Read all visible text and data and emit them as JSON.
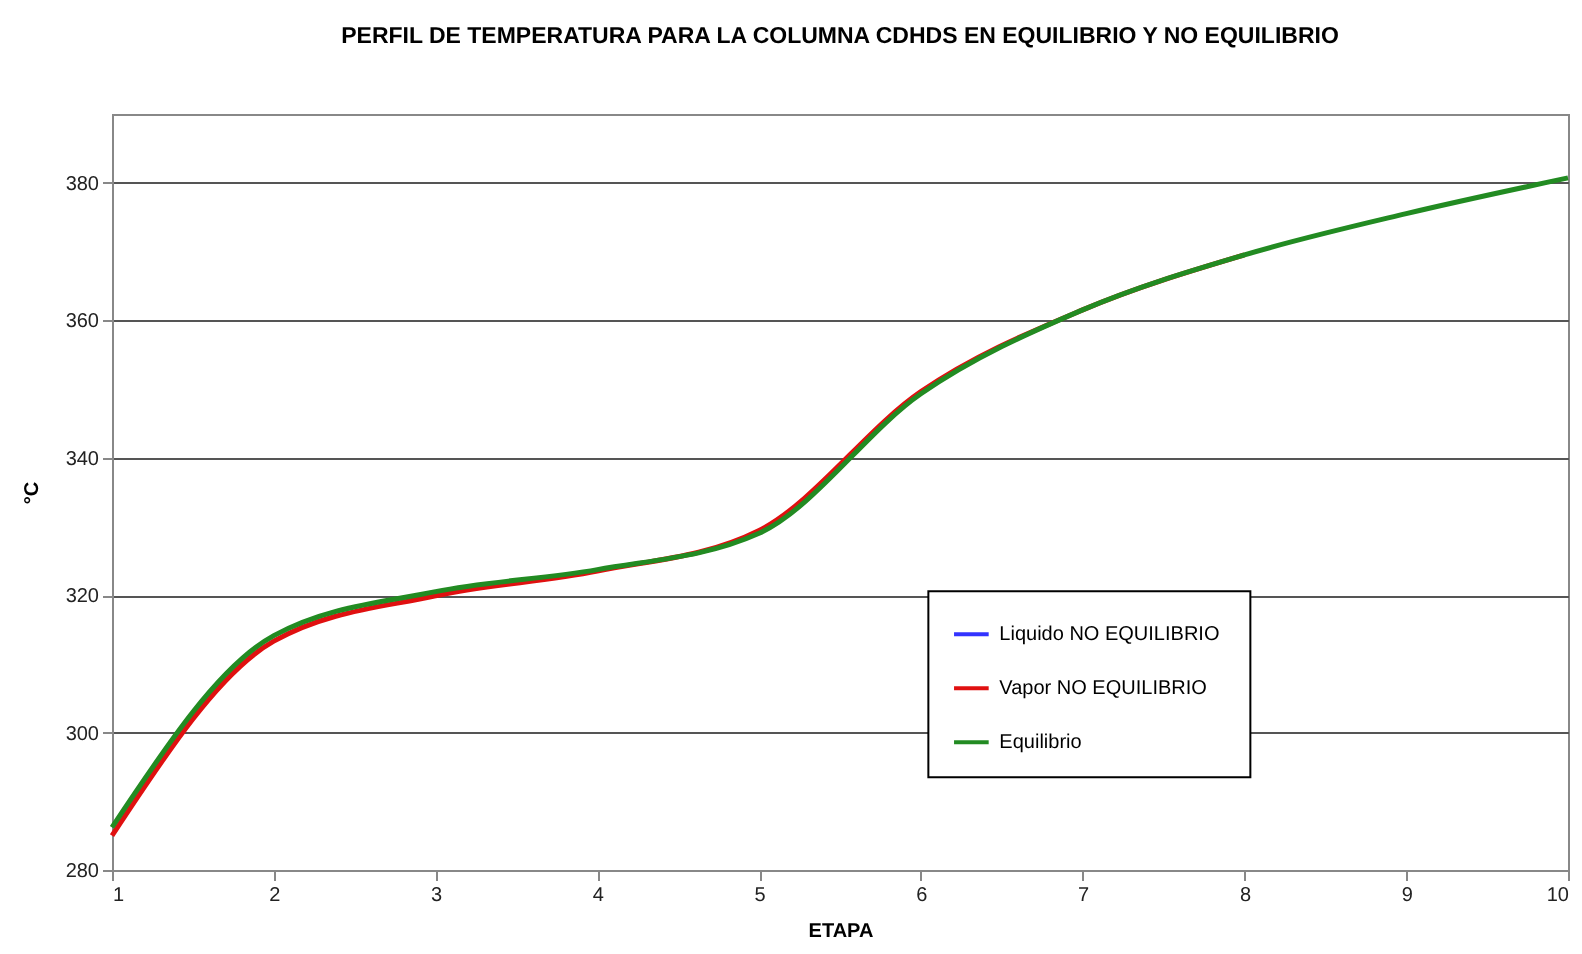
{
  "chart_data": {
    "type": "line",
    "title": "PERFIL DE TEMPERATURA PARA LA COLUMNA CDHDS EN EQUILIBRIO Y NO EQUILIBRIO",
    "xlabel": "ETAPA",
    "ylabel": "°C",
    "x": [
      1,
      2,
      3,
      4,
      5,
      6,
      7,
      8,
      9,
      10
    ],
    "series": [
      {
        "name": "Liquido  NO EQUILIBRIO",
        "color": "#3333ff",
        "values": [
          null,
          null,
          null,
          null,
          null,
          null,
          null,
          null,
          null,
          null
        ]
      },
      {
        "name": "Vapor NO EQUILIBRIO",
        "color": "#e01010",
        "values": [
          285,
          313.3,
          319.9,
          323.5,
          329.4,
          349.6,
          361.5,
          369.5,
          null,
          null
        ]
      },
      {
        "name": "Equilibrio",
        "color": "#228b22",
        "values": [
          286.2,
          314.1,
          320.5,
          323.7,
          329,
          349.3,
          361.5,
          369.5,
          375.5,
          380.7
        ]
      }
    ],
    "xlim": [
      1,
      10
    ],
    "xticks": [
      1,
      2,
      3,
      4,
      5,
      6,
      7,
      8,
      9,
      10
    ],
    "ylim": [
      280,
      390
    ],
    "yticks": [
      280,
      300,
      320,
      340,
      360,
      380
    ],
    "grid": "y",
    "legend": "bottom right",
    "marker": "none",
    "line_style": "solid"
  }
}
